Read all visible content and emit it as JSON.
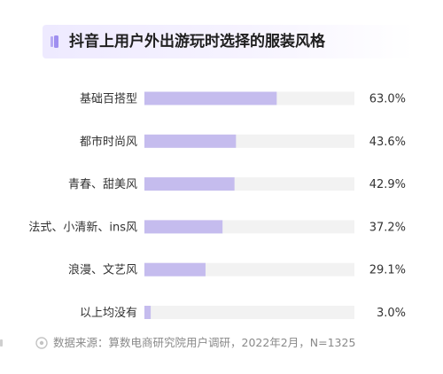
{
  "chart_data": {
    "type": "bar",
    "orientation": "horizontal",
    "title": "抖音上用户外出游玩时选择的服装风格",
    "categories": [
      "基础百搭型",
      "都市时尚风",
      "青春、甜美风",
      "法式、小清新、ins风",
      "浪漫、文艺风",
      "以上均没有"
    ],
    "values": [
      63.0,
      43.6,
      42.9,
      37.2,
      29.1,
      3.0
    ],
    "value_labels": [
      "63.0%",
      "43.6%",
      "42.9%",
      "37.2%",
      "29.1%",
      "3.0%"
    ],
    "unit": "%",
    "xlim": [
      0,
      100
    ],
    "grid": false,
    "legend": "none"
  },
  "source": "数据来源：算数电商研究院用户调研，2022年2月，N=1325",
  "colors": {
    "bar": "#c5bcee",
    "track": "#f2f2f2",
    "title_band": "#eeeaff",
    "marker": "#9f8ff0",
    "text": "#333333",
    "source_text": "#8a8a8a"
  },
  "icons": {
    "title_marker": "bar-marker-icon",
    "source": "info-circle-icon"
  }
}
